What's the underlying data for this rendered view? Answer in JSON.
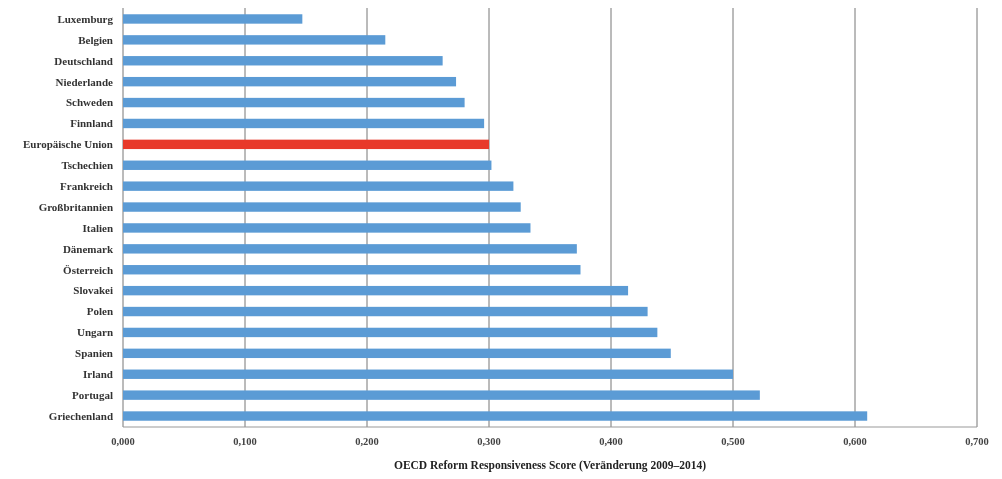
{
  "chart_data": {
    "type": "bar",
    "orientation": "horizontal",
    "xlabel": "OECD Reform Responsiveness Score (Veränderung 2009–2014)",
    "categories": [
      "Luxemburg",
      "Belgien",
      "Deutschland",
      "Niederlande",
      "Schweden",
      "Finnland",
      "Europäische Union",
      "Tschechien",
      "Frankreich",
      "Großbritannien",
      "Italien",
      "Dänemark",
      "Österreich",
      "Slovakei",
      "Polen",
      "Ungarn",
      "Spanien",
      "Irland",
      "Portugal",
      "Griechenland"
    ],
    "values": [
      0.147,
      0.215,
      0.262,
      0.273,
      0.28,
      0.296,
      0.3,
      0.302,
      0.32,
      0.326,
      0.334,
      0.372,
      0.375,
      0.414,
      0.43,
      0.438,
      0.449,
      0.5,
      0.522,
      0.61
    ],
    "colors": [
      "#5b9bd5",
      "#5b9bd5",
      "#5b9bd5",
      "#5b9bd5",
      "#5b9bd5",
      "#5b9bd5",
      "#e8392a",
      "#5b9bd5",
      "#5b9bd5",
      "#5b9bd5",
      "#5b9bd5",
      "#5b9bd5",
      "#5b9bd5",
      "#5b9bd5",
      "#5b9bd5",
      "#5b9bd5",
      "#5b9bd5",
      "#5b9bd5",
      "#5b9bd5",
      "#5b9bd5"
    ],
    "xlim": [
      0,
      0.7
    ],
    "xticks": [
      {
        "value": 0,
        "label": "0,000"
      },
      {
        "value": 0.1,
        "label": "0,100"
      },
      {
        "value": 0.2,
        "label": "0,200"
      },
      {
        "value": 0.3,
        "label": "0,300"
      },
      {
        "value": 0.4,
        "label": "0,400"
      },
      {
        "value": 0.5,
        "label": "0,500"
      },
      {
        "value": 0.6,
        "label": "0,600"
      },
      {
        "value": 0.7,
        "label": "0,700"
      }
    ],
    "grid": "x"
  }
}
